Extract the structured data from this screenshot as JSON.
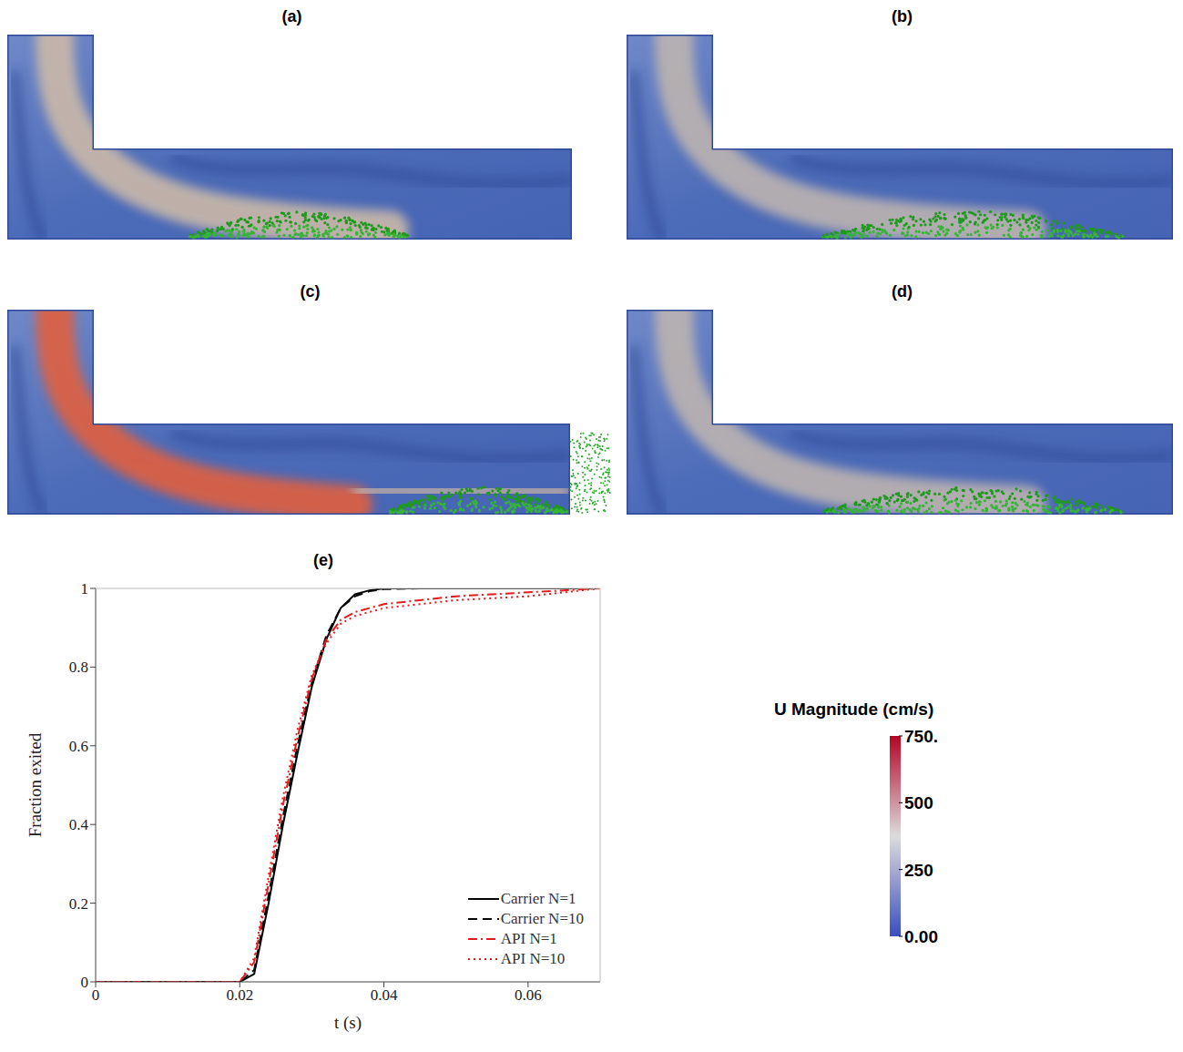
{
  "panels": [
    {
      "label": "(a)"
    },
    {
      "label": "(b)"
    },
    {
      "label": "(c)"
    },
    {
      "label": "(d)"
    }
  ],
  "colorbar": {
    "title": "U Magnitude (cm/s)",
    "range": [
      0,
      750
    ],
    "ticks": [
      {
        "value": 0,
        "label": "0.00"
      },
      250,
      500,
      {
        "value": 750,
        "label": "750."
      }
    ],
    "colors": [
      "#3b4cc0",
      "#dcdcdc",
      "#b40426"
    ]
  },
  "chart_data": {
    "type": "line",
    "title": "(e)",
    "x_label": "t (s)",
    "y_label": "Fraction exited",
    "x": [
      0,
      0.01,
      0.02,
      0.022,
      0.024,
      0.026,
      0.028,
      0.03,
      0.032,
      0.034,
      0.036,
      0.038,
      0.04,
      0.045,
      0.05,
      0.055,
      0.06,
      0.065,
      0.07
    ],
    "series": [
      {
        "name": "Carrier N=1",
        "color": "#000000",
        "line_style": "solid",
        "values": [
          0,
          0,
          0,
          0.02,
          0.2,
          0.4,
          0.58,
          0.75,
          0.87,
          0.95,
          0.985,
          0.995,
          1,
          1,
          1,
          1,
          1,
          1,
          1
        ]
      },
      {
        "name": "Carrier N=10",
        "color": "#000000",
        "line_style": "dashed",
        "values": [
          0,
          0,
          0,
          0.03,
          0.22,
          0.42,
          0.6,
          0.76,
          0.88,
          0.95,
          0.98,
          0.993,
          0.998,
          1,
          1,
          1,
          1,
          1,
          1
        ]
      },
      {
        "name": "API N=1",
        "color": "#e41a1c",
        "line_style": "dashdot",
        "values": [
          0,
          0,
          0,
          0.05,
          0.25,
          0.45,
          0.62,
          0.77,
          0.87,
          0.92,
          0.94,
          0.95,
          0.96,
          0.97,
          0.98,
          0.985,
          0.99,
          0.995,
          1
        ]
      },
      {
        "name": "API N=10",
        "color": "#e41a1c",
        "line_style": "dotted",
        "values": [
          0,
          0,
          0,
          0.06,
          0.27,
          0.47,
          0.64,
          0.78,
          0.86,
          0.91,
          0.93,
          0.94,
          0.95,
          0.96,
          0.97,
          0.975,
          0.98,
          0.99,
          1
        ]
      }
    ],
    "xlim": [
      0,
      0.07
    ],
    "xticks": [
      0,
      0.02,
      0.04,
      0.06
    ],
    "ylim": [
      0,
      1
    ],
    "yticks": [
      0,
      0.2,
      0.4,
      0.6,
      0.8,
      1
    ],
    "legend": "lower right",
    "grid": false
  }
}
